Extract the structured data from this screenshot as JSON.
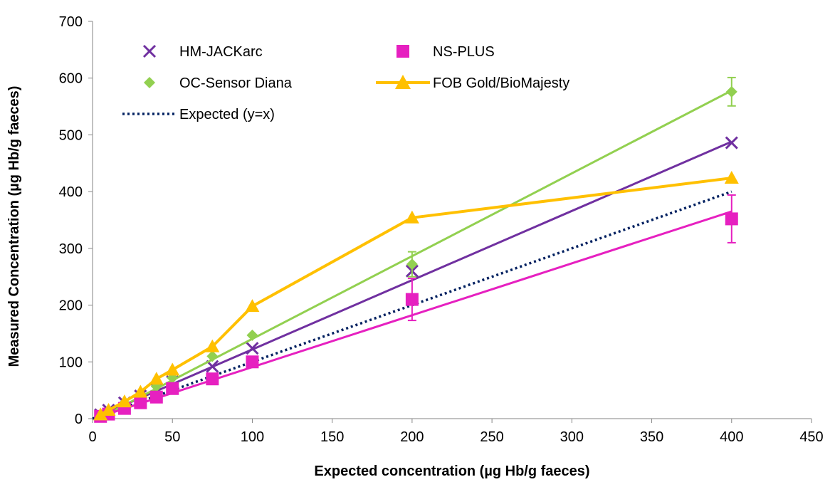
{
  "chart_data": {
    "type": "scatter",
    "title": "",
    "xlabel": "Expected concentration (µg Hb/g faeces)",
    "ylabel": "Measured Concentration (µg Hb/g faeces)",
    "xlim": [
      0,
      450
    ],
    "ylim": [
      0,
      700
    ],
    "x_ticks": [
      "0",
      "50",
      "100",
      "150",
      "200",
      "250",
      "300",
      "350",
      "400",
      "450"
    ],
    "y_ticks": [
      "0",
      "100",
      "200",
      "300",
      "400",
      "500",
      "600",
      "700"
    ],
    "grid": false,
    "legend_position": "top-left",
    "series": [
      {
        "name": "HM-JACKarc",
        "marker": "x",
        "color": "#7030A0",
        "connected": false,
        "trendline": {
          "x": [
            5,
            400
          ],
          "y": [
            6,
            488
          ]
        },
        "x": [
          5,
          10,
          20,
          30,
          40,
          50,
          75,
          100,
          200,
          400
        ],
        "y": [
          7,
          15,
          28,
          40,
          52,
          65,
          92,
          124,
          260,
          486
        ],
        "err": [
          0,
          0,
          0,
          0,
          0,
          0,
          0,
          0,
          0,
          0
        ]
      },
      {
        "name": "NS-PLUS",
        "marker": "square",
        "color": "#E620C0",
        "connected": false,
        "trendline": {
          "x": [
            5,
            400
          ],
          "y": [
            4,
            365
          ]
        },
        "x": [
          5,
          10,
          20,
          30,
          40,
          50,
          75,
          100,
          200,
          400
        ],
        "y": [
          4,
          8,
          18,
          28,
          38,
          53,
          70,
          100,
          210,
          352
        ],
        "err": [
          0,
          0,
          0,
          0,
          0,
          0,
          0,
          0,
          37,
          42
        ]
      },
      {
        "name": "OC-Sensor Diana",
        "marker": "diamond",
        "color": "#92D050",
        "connected": false,
        "trendline": {
          "x": [
            5,
            400
          ],
          "y": [
            2,
            578
          ]
        },
        "x": [
          5,
          10,
          20,
          30,
          40,
          50,
          75,
          100,
          200,
          400
        ],
        "y": [
          6,
          12,
          28,
          42,
          57,
          72,
          110,
          147,
          272,
          576
        ],
        "err": [
          0,
          0,
          0,
          0,
          0,
          0,
          0,
          0,
          22,
          25
        ]
      },
      {
        "name": "FOB Gold/BioMajesty",
        "marker": "triangle",
        "color": "#FFC000",
        "connected": true,
        "x": [
          5,
          10,
          20,
          30,
          40,
          50,
          75,
          100,
          200,
          400
        ],
        "y": [
          7,
          15,
          30,
          47,
          70,
          86,
          127,
          198,
          354,
          424
        ],
        "err": [
          0,
          0,
          0,
          0,
          0,
          0,
          0,
          0,
          0,
          0
        ]
      },
      {
        "name": "Expected (y=x)",
        "marker": "none",
        "color": "#002060",
        "dashed": true,
        "connected": true,
        "x": [
          0,
          400
        ],
        "y": [
          0,
          400
        ]
      }
    ]
  }
}
